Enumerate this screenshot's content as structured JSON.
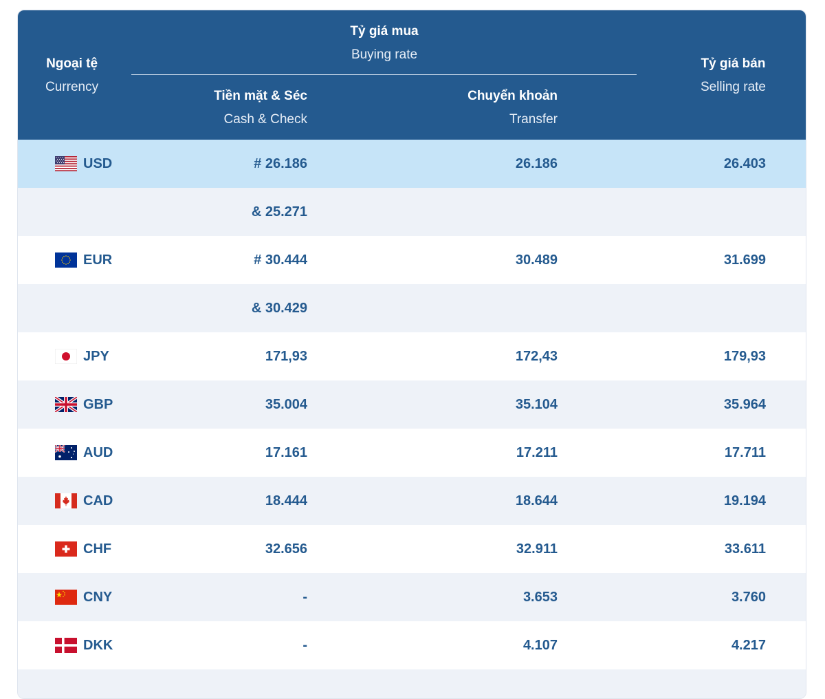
{
  "header": {
    "currency_vi": "Ngoại tệ",
    "currency_en": "Currency",
    "buying_vi": "Tỷ giá mua",
    "buying_en": "Buying rate",
    "cash_vi": "Tiền mặt & Séc",
    "cash_en": "Cash & Check",
    "transfer_vi": "Chuyển khoản",
    "transfer_en": "Transfer",
    "selling_vi": "Tỷ giá bán",
    "selling_en": "Selling rate"
  },
  "colors": {
    "header_bg": "#245a8f",
    "text": "#245a8f",
    "highlight_row": "#c6e4f8",
    "alt_row": "#eef2f8"
  },
  "rows": [
    {
      "code": "USD",
      "flag": "us-flag-icon",
      "cash": "# 26.186",
      "transfer": "26.186",
      "sell": "26.403"
    },
    {
      "code": "",
      "flag": "",
      "cash": "& 25.271",
      "transfer": "",
      "sell": ""
    },
    {
      "code": "EUR",
      "flag": "eu-flag-icon",
      "cash": "# 30.444",
      "transfer": "30.489",
      "sell": "31.699"
    },
    {
      "code": "",
      "flag": "",
      "cash": "& 30.429",
      "transfer": "",
      "sell": ""
    },
    {
      "code": "JPY",
      "flag": "jp-flag-icon",
      "cash": "171,93",
      "transfer": "172,43",
      "sell": "179,93"
    },
    {
      "code": "GBP",
      "flag": "gb-flag-icon",
      "cash": "35.004",
      "transfer": "35.104",
      "sell": "35.964"
    },
    {
      "code": "AUD",
      "flag": "au-flag-icon",
      "cash": "17.161",
      "transfer": "17.211",
      "sell": "17.711"
    },
    {
      "code": "CAD",
      "flag": "ca-flag-icon",
      "cash": "18.444",
      "transfer": "18.644",
      "sell": "19.194"
    },
    {
      "code": "CHF",
      "flag": "ch-flag-icon",
      "cash": "32.656",
      "transfer": "32.911",
      "sell": "33.611"
    },
    {
      "code": "CNY",
      "flag": "cn-flag-icon",
      "cash": "-",
      "transfer": "3.653",
      "sell": "3.760"
    },
    {
      "code": "DKK",
      "flag": "dk-flag-icon",
      "cash": "-",
      "transfer": "4.107",
      "sell": "4.217"
    }
  ]
}
